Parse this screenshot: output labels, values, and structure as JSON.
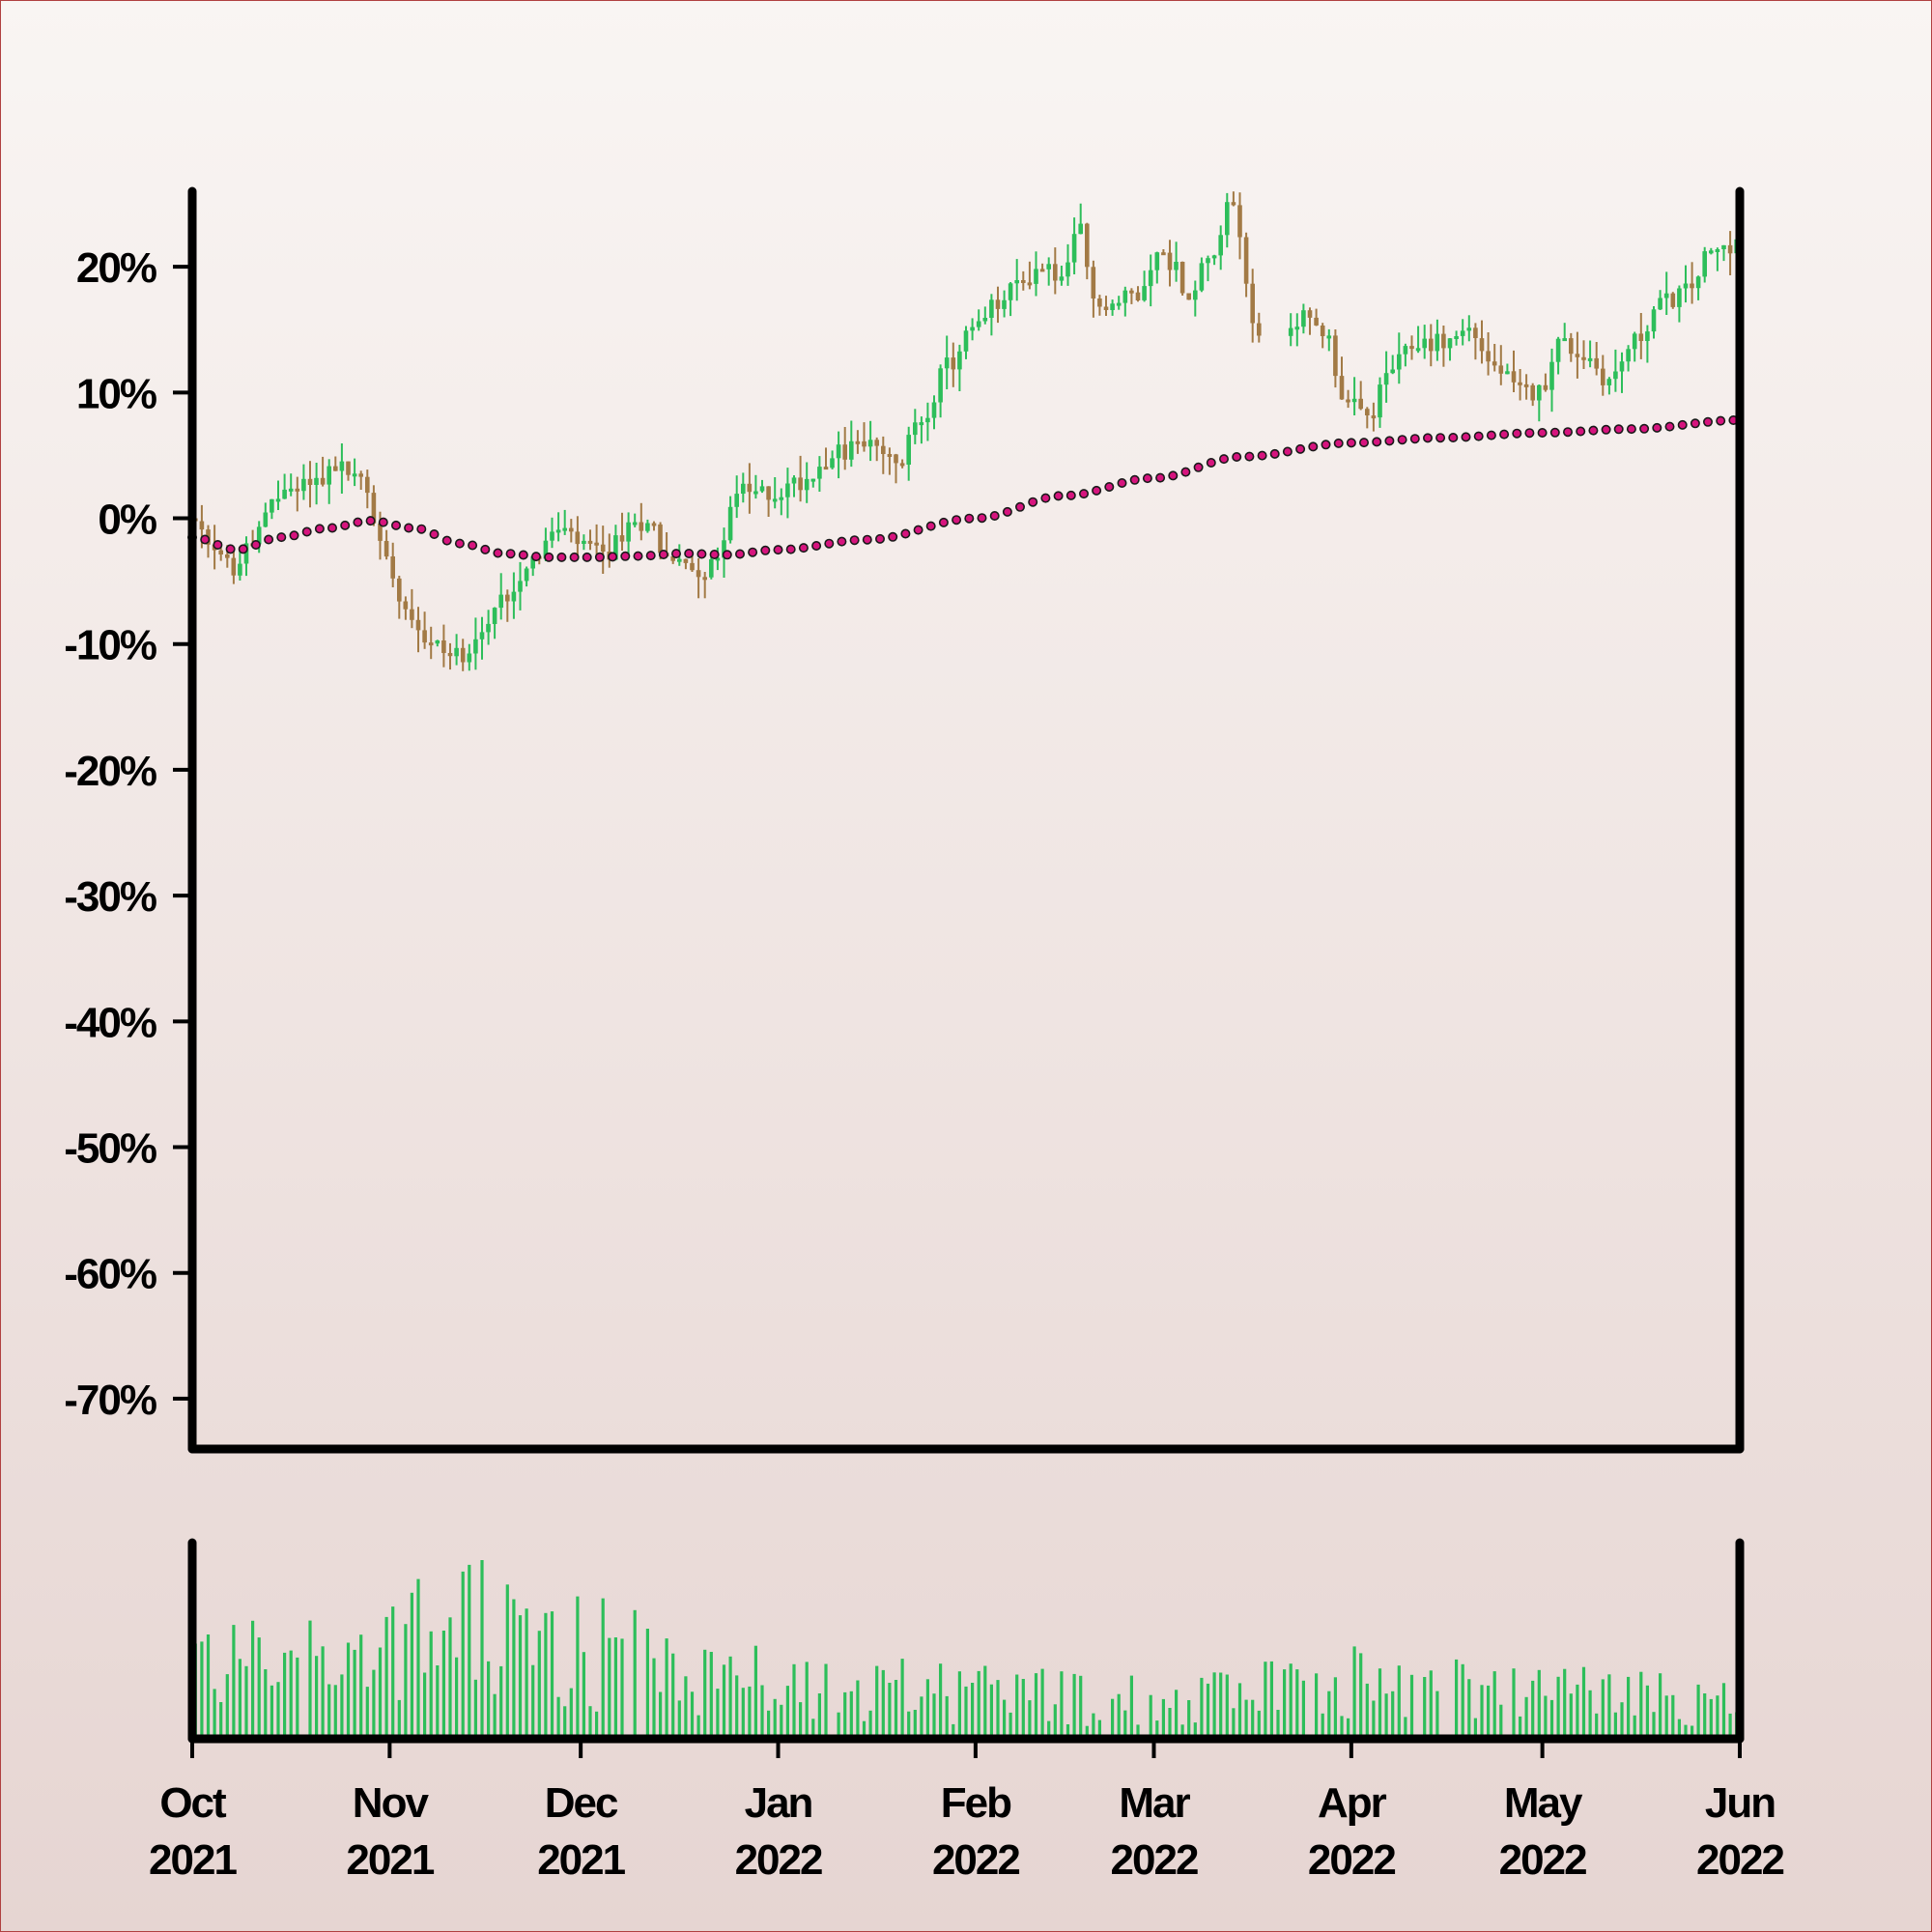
{
  "chart_data": [
    {
      "type": "candlestick",
      "title": "",
      "xlabel": "",
      "ylabel": "",
      "y_ticks": [
        "20%",
        "10%",
        "0%",
        "-10%",
        "-20%",
        "-30%",
        "-40%",
        "-50%",
        "-60%",
        "-70%"
      ],
      "y_tick_values": [
        20,
        10,
        0,
        -10,
        -20,
        -30,
        -40,
        -50,
        -60,
        -70
      ],
      "ylim": [
        -74,
        26
      ],
      "x_range": [
        "2021-10-01",
        "2022-06-01"
      ],
      "grid": false,
      "legend": "none",
      "colors": {
        "up": "#2dbe5a",
        "down": "#a27a45",
        "trend": "#d6147e",
        "trend_outline": "#1a1a1a",
        "axis": "#000000"
      },
      "price_anchors": [
        [
          "2021-10-01",
          0
        ],
        [
          "2021-10-05",
          -3
        ],
        [
          "2021-10-08",
          -4
        ],
        [
          "2021-10-12",
          -1
        ],
        [
          "2021-10-15",
          2
        ],
        [
          "2021-10-20",
          3
        ],
        [
          "2021-10-25",
          4
        ],
        [
          "2021-10-28",
          3
        ],
        [
          "2021-11-01",
          -3
        ],
        [
          "2021-11-04",
          -7
        ],
        [
          "2021-11-08",
          -10
        ],
        [
          "2021-11-12",
          -11
        ],
        [
          "2021-11-16",
          -9
        ],
        [
          "2021-11-20",
          -6
        ],
        [
          "2021-11-24",
          -3
        ],
        [
          "2021-11-28",
          -1
        ],
        [
          "2021-12-01",
          -2
        ],
        [
          "2021-12-05",
          -3
        ],
        [
          "2021-12-09",
          -1
        ],
        [
          "2021-12-12",
          0
        ],
        [
          "2021-12-15",
          -3
        ],
        [
          "2021-12-18",
          -4
        ],
        [
          "2021-12-22",
          -4
        ],
        [
          "2021-12-26",
          2
        ],
        [
          "2022-01-01",
          2
        ],
        [
          "2022-01-05",
          3
        ],
        [
          "2022-01-10",
          5
        ],
        [
          "2022-01-15",
          6
        ],
        [
          "2022-01-18",
          5
        ],
        [
          "2022-01-20",
          4
        ],
        [
          "2022-01-24",
          8
        ],
        [
          "2022-01-28",
          12
        ],
        [
          "2022-02-01",
          15
        ],
        [
          "2022-02-05",
          17
        ],
        [
          "2022-02-09",
          19
        ],
        [
          "2022-02-12",
          20
        ],
        [
          "2022-02-15",
          19
        ],
        [
          "2022-02-18",
          23
        ],
        [
          "2022-02-20",
          17
        ],
        [
          "2022-02-23",
          17
        ],
        [
          "2022-02-27",
          18
        ],
        [
          "2022-03-02",
          21
        ],
        [
          "2022-03-05",
          20
        ],
        [
          "2022-03-07",
          17
        ],
        [
          "2022-03-10",
          21
        ],
        [
          "2022-03-14",
          25
        ],
        [
          "2022-03-17",
          16
        ],
        [
          "2022-03-20",
          13
        ],
        [
          "2022-03-24",
          16
        ],
        [
          "2022-03-28",
          15
        ],
        [
          "2022-04-01",
          9
        ],
        [
          "2022-04-04",
          8
        ],
        [
          "2022-04-08",
          12
        ],
        [
          "2022-04-12",
          14
        ],
        [
          "2022-04-16",
          14
        ],
        [
          "2022-04-20",
          15
        ],
        [
          "2022-04-24",
          12
        ],
        [
          "2022-04-28",
          10
        ],
        [
          "2022-05-01",
          10
        ],
        [
          "2022-05-04",
          14
        ],
        [
          "2022-05-08",
          13
        ],
        [
          "2022-05-12",
          11
        ],
        [
          "2022-05-16",
          14
        ],
        [
          "2022-05-20",
          17
        ],
        [
          "2022-05-24",
          18
        ],
        [
          "2022-05-28",
          21
        ],
        [
          "2022-06-01",
          22
        ]
      ],
      "trend": [
        [
          "2021-10-01",
          -1.5
        ],
        [
          "2021-10-08",
          -2.5
        ],
        [
          "2021-10-15",
          -1.5
        ],
        [
          "2021-10-22",
          -0.8
        ],
        [
          "2021-10-29",
          -0.2
        ],
        [
          "2021-11-05",
          -0.8
        ],
        [
          "2021-11-12",
          -2.0
        ],
        [
          "2021-11-19",
          -2.8
        ],
        [
          "2021-11-26",
          -3.1
        ],
        [
          "2021-12-03",
          -3.1
        ],
        [
          "2021-12-10",
          -3.0
        ],
        [
          "2021-12-17",
          -2.8
        ],
        [
          "2021-12-24",
          -2.9
        ],
        [
          "2022-01-01",
          -2.5
        ],
        [
          "2022-01-15",
          -1.7
        ],
        [
          "2022-02-01",
          0.0
        ],
        [
          "2022-02-15",
          1.8
        ],
        [
          "2022-03-01",
          3.2
        ],
        [
          "2022-03-15",
          4.9
        ],
        [
          "2022-04-01",
          6.0
        ],
        [
          "2022-04-15",
          6.4
        ],
        [
          "2022-05-01",
          6.8
        ],
        [
          "2022-05-15",
          7.1
        ],
        [
          "2022-06-01",
          7.8
        ]
      ],
      "gap": [
        "2022-03-18",
        "2022-03-21"
      ]
    },
    {
      "type": "bar",
      "title": "",
      "series_name": "",
      "volume_scale": "relative 0-100",
      "color": "#2dbe5a",
      "x_ticks": [
        {
          "month": "Oct",
          "year": "2021"
        },
        {
          "month": "Nov",
          "year": "2021"
        },
        {
          "month": "Dec",
          "year": "2021"
        },
        {
          "month": "Jan",
          "year": "2022"
        },
        {
          "month": "Feb",
          "year": "2022"
        },
        {
          "month": "Mar",
          "year": "2022"
        },
        {
          "month": "Apr",
          "year": "2022"
        },
        {
          "month": "May",
          "year": "2022"
        },
        {
          "month": "Jun",
          "year": "2022"
        }
      ],
      "x_tick_dates": [
        "2021-10-01",
        "2021-11-01",
        "2021-12-01",
        "2022-01-01",
        "2022-02-01",
        "2022-03-01",
        "2022-04-01",
        "2022-05-01",
        "2022-06-01"
      ],
      "volume_anchors": [
        [
          "2021-10-01",
          50
        ],
        [
          "2021-11-01",
          55
        ],
        [
          "2021-11-10",
          70
        ],
        [
          "2021-12-01",
          55
        ],
        [
          "2021-12-20",
          40
        ],
        [
          "2022-01-01",
          35
        ],
        [
          "2022-02-01",
          28
        ],
        [
          "2022-03-01",
          25
        ],
        [
          "2022-04-01",
          35
        ],
        [
          "2022-05-01",
          30
        ],
        [
          "2022-06-01",
          25
        ]
      ]
    }
  ]
}
